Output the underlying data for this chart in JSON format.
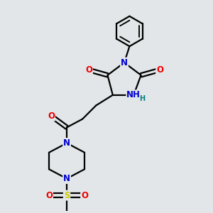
{
  "bg_color": "#e2e6e8",
  "bond_color": "#000000",
  "bond_width": 1.6,
  "atom_colors": {
    "C": "#000000",
    "N": "#0000cc",
    "O": "#ee0000",
    "S": "#cccc00",
    "H": "#008080"
  },
  "font_size_atom": 8.5,
  "font_size_H": 7.0
}
